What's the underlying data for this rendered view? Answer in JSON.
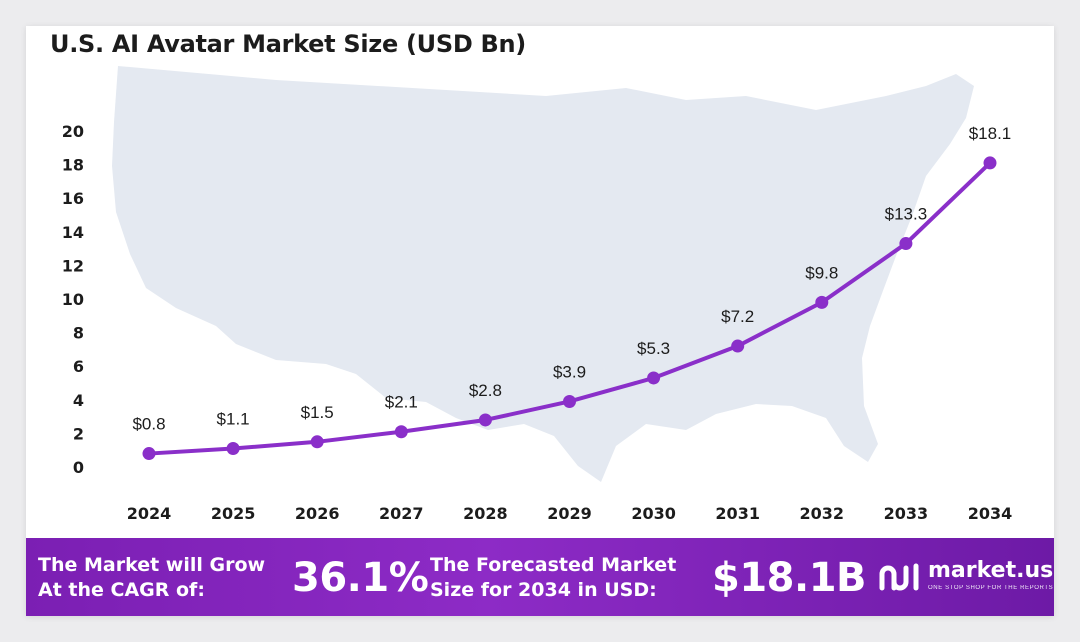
{
  "colors": {
    "line": "#8a2fc9",
    "banner": "#7b1fb3",
    "map": "#e4e9f1",
    "text": "#1c1c1c"
  },
  "chart_data": {
    "type": "line",
    "title": "U.S. AI Avatar Market Size (USD Bn)",
    "categories": [
      "2024",
      "2025",
      "2026",
      "2027",
      "2028",
      "2029",
      "2030",
      "2031",
      "2032",
      "2033",
      "2034"
    ],
    "values": [
      0.8,
      1.1,
      1.5,
      2.1,
      2.8,
      3.9,
      5.3,
      7.2,
      9.8,
      13.3,
      18.1
    ],
    "data_labels": [
      "$0.8",
      "$1.1",
      "$1.5",
      "$2.1",
      "$2.8",
      "$3.9",
      "$5.3",
      "$7.2",
      "$9.8",
      "$13.3",
      "$18.1"
    ],
    "yticks": [
      "0",
      "2",
      "4",
      "6",
      "8",
      "10",
      "12",
      "14",
      "16",
      "18",
      "20"
    ],
    "ylim": [
      0,
      20
    ],
    "xlabel": "",
    "ylabel": "",
    "grid": false,
    "legend": "none",
    "background": "us-map-silhouette"
  },
  "banner": {
    "cagr_label": "The Market will Grow\nAt the CAGR of:",
    "cagr_value": "36.1%",
    "forecast_label": "The Forecasted Market\nSize for 2034 in USD:",
    "forecast_value": "$18.1B"
  },
  "logo": {
    "name": "market.us",
    "tagline": "ONE STOP SHOP FOR THE REPORTS",
    "icon": "market-us-logo-icon"
  }
}
